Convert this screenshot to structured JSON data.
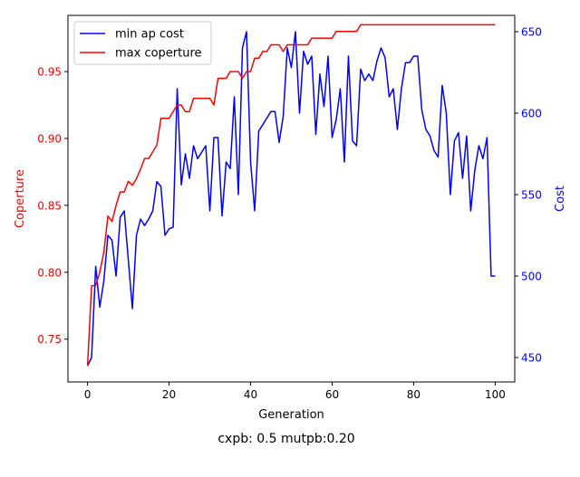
{
  "chart_data": {
    "type": "line",
    "xlabel": "Generation",
    "caption": "cxpb: 0.5 mutpb:0.20",
    "x": [
      0,
      1,
      2,
      3,
      4,
      5,
      6,
      7,
      8,
      9,
      10,
      11,
      12,
      13,
      14,
      15,
      16,
      17,
      18,
      19,
      20,
      21,
      22,
      23,
      24,
      25,
      26,
      27,
      28,
      29,
      30,
      31,
      32,
      33,
      34,
      35,
      36,
      37,
      38,
      39,
      40,
      41,
      42,
      43,
      44,
      45,
      46,
      47,
      48,
      49,
      50,
      51,
      52,
      53,
      54,
      55,
      56,
      57,
      58,
      59,
      60,
      61,
      62,
      63,
      64,
      65,
      66,
      67,
      68,
      69,
      70,
      71,
      72,
      73,
      74,
      75,
      76,
      77,
      78,
      79,
      80,
      81,
      82,
      83,
      84,
      85,
      86,
      87,
      88,
      89,
      90,
      91,
      92,
      93,
      94,
      95,
      96,
      97,
      98,
      99,
      100
    ],
    "xlim": [
      -4.8,
      104.8
    ],
    "xticks": [
      0,
      20,
      40,
      60,
      80,
      100
    ],
    "left_axis": {
      "label": "Coperture",
      "color": "#ff0000",
      "ylim": [
        0.718,
        0.992
      ],
      "ticks": [
        0.75,
        0.8,
        0.85,
        0.9,
        0.95
      ],
      "tick_labels": [
        "0.75",
        "0.80",
        "0.85",
        "0.90",
        "0.95"
      ]
    },
    "right_axis": {
      "label": "Cost",
      "color": "#0000ff",
      "ylim": [
        435,
        660
      ],
      "ticks": [
        450,
        500,
        550,
        600,
        650
      ],
      "tick_labels": [
        "450",
        "500",
        "550",
        "600",
        "650"
      ]
    },
    "legend": {
      "position": "top-left",
      "entries": [
        "min ap cost",
        "max coperture"
      ]
    },
    "series": [
      {
        "name": "min ap cost",
        "axis": "right",
        "color": "#0000ff",
        "values": [
          445,
          450,
          506,
          481,
          497,
          525,
          522,
          500,
          536,
          540,
          510,
          480,
          525,
          535,
          531,
          535,
          540,
          558,
          555,
          525,
          529,
          530,
          615,
          556,
          575,
          560,
          580,
          572,
          576,
          580,
          540,
          585,
          585,
          537,
          570,
          566,
          610,
          550,
          640,
          650,
          570,
          540,
          589,
          593,
          597,
          601,
          601,
          582,
          598,
          640,
          628,
          650,
          600,
          638,
          630,
          635,
          587,
          624,
          604,
          635,
          585,
          596,
          615,
          570,
          635,
          583,
          580,
          627,
          620,
          624,
          620,
          632,
          640,
          634,
          610,
          615,
          590,
          615,
          631,
          631,
          635,
          635,
          602,
          590,
          586,
          577,
          573,
          617,
          600,
          550,
          583,
          588,
          560,
          586,
          540,
          565,
          580,
          572,
          585,
          500,
          500
        ],
        "values_note": ""
      },
      {
        "name": "max coperture",
        "axis": "left",
        "color": "#ff0000",
        "values": [
          0.73,
          0.79,
          0.79,
          0.8,
          0.815,
          0.842,
          0.838,
          0.85,
          0.86,
          0.86,
          0.868,
          0.865,
          0.87,
          0.877,
          0.885,
          0.885,
          0.89,
          0.895,
          0.915,
          0.915,
          0.915,
          0.92,
          0.925,
          0.925,
          0.92,
          0.92,
          0.93,
          0.93,
          0.93,
          0.93,
          0.93,
          0.925,
          0.945,
          0.945,
          0.945,
          0.95,
          0.95,
          0.95,
          0.945,
          0.95,
          0.95,
          0.96,
          0.96,
          0.965,
          0.965,
          0.97,
          0.97,
          0.97,
          0.965,
          0.97,
          0.97,
          0.97,
          0.97,
          0.97,
          0.97,
          0.975,
          0.975,
          0.975,
          0.975,
          0.975,
          0.975,
          0.98,
          0.98,
          0.98,
          0.98,
          0.98,
          0.98,
          0.985,
          0.985,
          0.985,
          0.985,
          0.985,
          0.985,
          0.985,
          0.985,
          0.985,
          0.985,
          0.985,
          0.985,
          0.985,
          0.985,
          0.985,
          0.985,
          0.985,
          0.985,
          0.985,
          0.985,
          0.985,
          0.985,
          0.985,
          0.985,
          0.985,
          0.985,
          0.985,
          0.985,
          0.985,
          0.985,
          0.985,
          0.985,
          0.985,
          0.985
        ]
      }
    ]
  }
}
